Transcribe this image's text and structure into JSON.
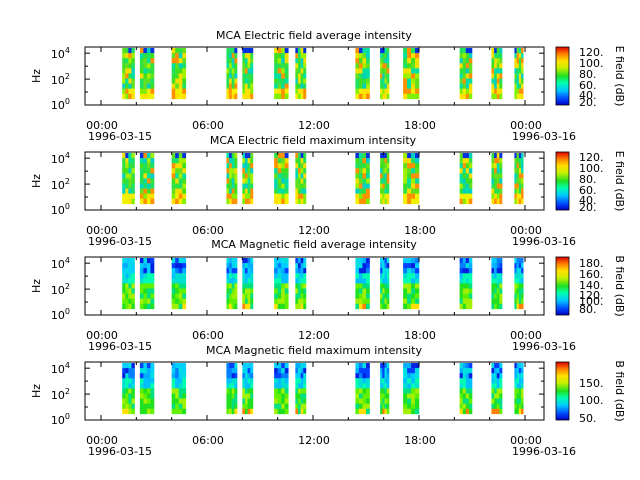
{
  "panels": [
    {
      "title": "MCA  Electric field average intensity",
      "ylabel": "Hz",
      "clabel": "E field (dB)",
      "cticks": [
        "120.",
        "100.",
        "80.",
        "60.",
        "40.",
        "20."
      ]
    },
    {
      "title": "MCA  Electric field maximum intensity",
      "ylabel": "Hz",
      "clabel": "E field (dB)",
      "cticks": [
        "120.",
        "100.",
        "80.",
        "60.",
        "40.",
        "20."
      ]
    },
    {
      "title": "MCA  Magnetic field average intensity",
      "ylabel": "Hz",
      "clabel": "B field (dB)",
      "cticks": [
        "180.",
        "160.",
        "140.",
        "120.",
        "100.",
        "80."
      ]
    },
    {
      "title": "MCA  Magnetic field maximum intensity",
      "ylabel": "Hz",
      "clabel": "B field (dB)",
      "cticks": [
        "150.",
        "100.",
        "50."
      ]
    }
  ],
  "xticks": [
    "00:00",
    "06:00",
    "12:00",
    "18:00",
    "00:00"
  ],
  "date_start": "1996-03-15",
  "date_end": "1996-03-16",
  "yticks": [
    {
      "base": "10",
      "exp": "0"
    },
    {
      "base": "10",
      "exp": "2"
    },
    {
      "base": "10",
      "exp": "4"
    }
  ],
  "chart_data": [
    {
      "type": "heatmap",
      "title": "MCA  Electric field average intensity",
      "ylabel": "Hz",
      "yscale": "log",
      "ylim": [
        1,
        30000
      ],
      "xlim": [
        "1996-03-15 00:00",
        "1996-03-16 01:00"
      ],
      "colorbar": {
        "label": "E field (dB)",
        "range": [
          15,
          125
        ],
        "colormap": "rainbow"
      },
      "observation_intervals_hours": [
        [
          1.2,
          1.9
        ],
        [
          2.2,
          3.0
        ],
        [
          4.0,
          4.8
        ],
        [
          7.1,
          7.7
        ],
        [
          8.0,
          8.6
        ],
        [
          9.8,
          10.6
        ],
        [
          11.0,
          11.6
        ],
        [
          14.4,
          15.2
        ],
        [
          15.8,
          16.3
        ],
        [
          17.1,
          18.0
        ],
        [
          20.3,
          21.0
        ],
        [
          22.1,
          22.7
        ],
        [
          23.4,
          23.9
        ]
      ]
    },
    {
      "type": "heatmap",
      "title": "MCA  Electric field maximum intensity",
      "ylabel": "Hz",
      "yscale": "log",
      "ylim": [
        1,
        30000
      ],
      "xlim": [
        "1996-03-15 00:00",
        "1996-03-16 01:00"
      ],
      "colorbar": {
        "label": "E field (dB)",
        "range": [
          15,
          125
        ],
        "colormap": "rainbow"
      },
      "observation_intervals_hours": [
        [
          1.2,
          1.9
        ],
        [
          2.2,
          3.0
        ],
        [
          4.0,
          4.8
        ],
        [
          7.1,
          7.7
        ],
        [
          8.0,
          8.6
        ],
        [
          9.8,
          10.6
        ],
        [
          11.0,
          11.6
        ],
        [
          14.4,
          15.2
        ],
        [
          15.8,
          16.3
        ],
        [
          17.1,
          18.0
        ],
        [
          20.3,
          21.0
        ],
        [
          22.1,
          22.7
        ],
        [
          23.4,
          23.9
        ]
      ]
    },
    {
      "type": "heatmap",
      "title": "MCA  Magnetic field average intensity",
      "ylabel": "Hz",
      "yscale": "log",
      "ylim": [
        1,
        30000
      ],
      "xlim": [
        "1996-03-15 00:00",
        "1996-03-16 01:00"
      ],
      "colorbar": {
        "label": "B field (dB)",
        "range": [
          70,
          195
        ],
        "colormap": "rainbow"
      },
      "observation_intervals_hours": [
        [
          1.2,
          1.9
        ],
        [
          2.2,
          3.0
        ],
        [
          4.0,
          4.8
        ],
        [
          7.1,
          7.7
        ],
        [
          8.0,
          8.6
        ],
        [
          9.8,
          10.6
        ],
        [
          11.0,
          11.6
        ],
        [
          14.4,
          15.2
        ],
        [
          15.8,
          16.3
        ],
        [
          17.1,
          18.0
        ],
        [
          20.3,
          21.0
        ],
        [
          22.1,
          22.7
        ],
        [
          23.4,
          23.9
        ]
      ]
    },
    {
      "type": "heatmap",
      "title": "MCA  Magnetic field maximum intensity",
      "ylabel": "Hz",
      "yscale": "log",
      "ylim": [
        1,
        30000
      ],
      "xlim": [
        "1996-03-15 00:00",
        "1996-03-16 01:00"
      ],
      "colorbar": {
        "label": "B field (dB)",
        "range": [
          40,
          195
        ],
        "colormap": "rainbow"
      },
      "observation_intervals_hours": [
        [
          1.2,
          1.9
        ],
        [
          2.2,
          3.0
        ],
        [
          4.0,
          4.8
        ],
        [
          7.1,
          7.7
        ],
        [
          8.0,
          8.6
        ],
        [
          9.8,
          10.6
        ],
        [
          11.0,
          11.6
        ],
        [
          14.4,
          15.2
        ],
        [
          15.8,
          16.3
        ],
        [
          17.1,
          18.0
        ],
        [
          20.3,
          21.0
        ],
        [
          22.1,
          22.7
        ],
        [
          23.4,
          23.9
        ]
      ]
    }
  ]
}
